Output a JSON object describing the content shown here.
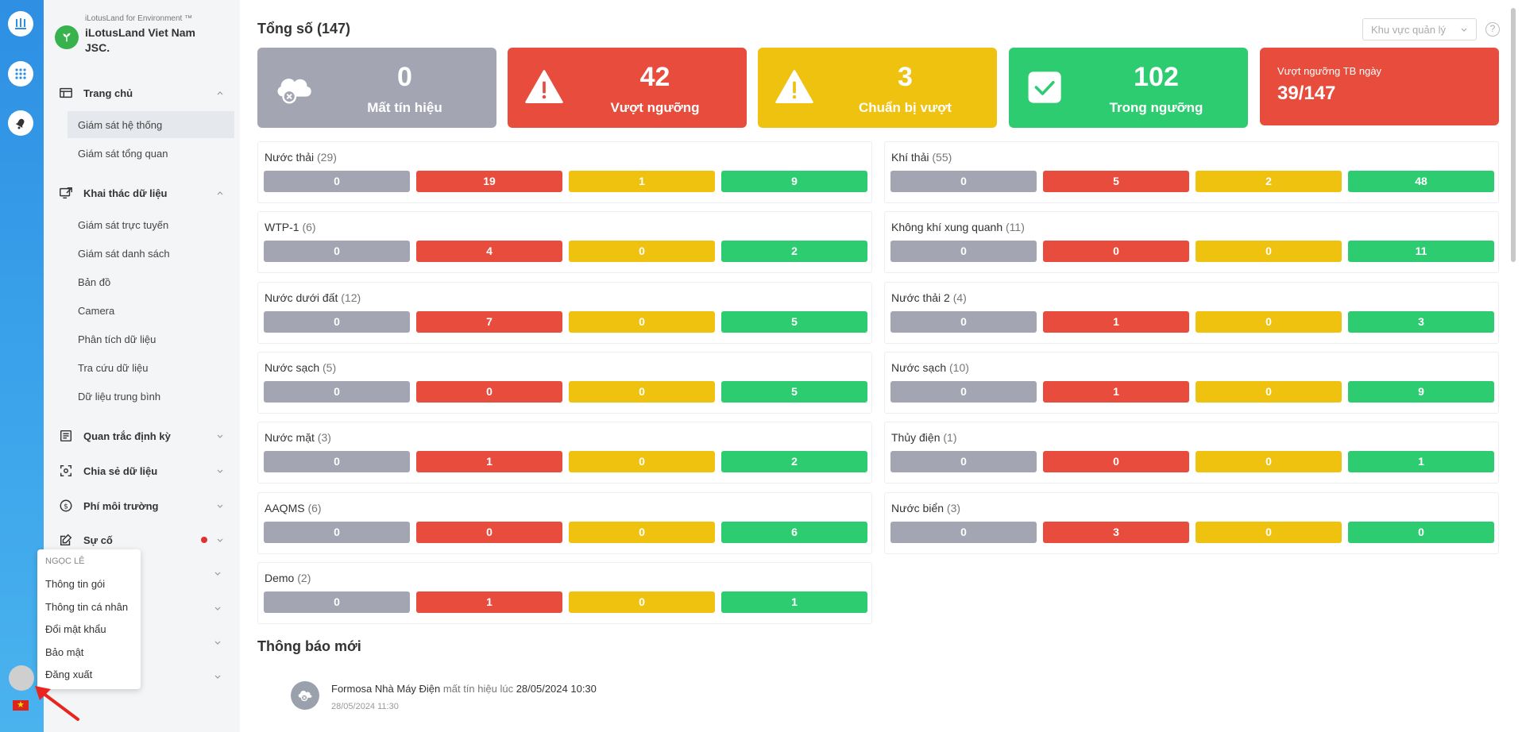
{
  "sidebar": {
    "brand_small": "iLotusLand for Environment ™",
    "brand_name": "iLotusLand Viet Nam JSC.",
    "groups": [
      {
        "label": "Trang chủ",
        "items": [
          "Giám sát hệ thống",
          "Giám sát tổng quan"
        ]
      },
      {
        "label": "Khai thác dữ liệu",
        "items": [
          "Giám sát trực tuyến",
          "Giám sát danh sách",
          "Bản đồ",
          "Camera",
          "Phân tích dữ liệu",
          "Tra cứu dữ liệu",
          "Dữ liệu trung bình"
        ]
      },
      {
        "label": "Quan trắc định kỳ"
      },
      {
        "label": "Chia sẻ dữ liệu"
      },
      {
        "label": "Phí môi trường"
      },
      {
        "label": "Sự cố"
      }
    ]
  },
  "user_menu": {
    "user_name": "NGỌC LÊ",
    "items": [
      "Thông tin gói",
      "Thông tin cá nhân",
      "Đổi mật khẩu",
      "Bảo mật",
      "Đăng xuất"
    ]
  },
  "header": {
    "title": "Tổng số (147)",
    "region_placeholder": "Khu vực quản lý",
    "help": "?"
  },
  "stats": [
    {
      "value": "0",
      "label": "Mất tín hiệu",
      "color": "#a3a5b3"
    },
    {
      "value": "42",
      "label": "Vượt ngưỡng",
      "color": "#e74c3c"
    },
    {
      "value": "3",
      "label": "Chuẩn bị vượt",
      "color": "#eec20f"
    },
    {
      "value": "102",
      "label": "Trong ngưỡng",
      "color": "#2ecc71"
    }
  ],
  "avg_card": {
    "label": "Vượt ngưỡng TB ngày",
    "value": "39/147",
    "color": "#e74c3c"
  },
  "colors": {
    "gray": "#a3a5b3",
    "red": "#e74c3c",
    "yellow": "#eec20f",
    "green": "#2ecc71"
  },
  "groups": [
    {
      "name": "Nước thải",
      "count": "(29)",
      "values": [
        "0",
        "19",
        "1",
        "9"
      ]
    },
    {
      "name": "Khí thải",
      "count": "(55)",
      "values": [
        "0",
        "5",
        "2",
        "48"
      ]
    },
    {
      "name": "WTP-1",
      "count": "(6)",
      "values": [
        "0",
        "4",
        "0",
        "2"
      ]
    },
    {
      "name": "Không khí xung quanh",
      "count": "(11)",
      "values": [
        "0",
        "0",
        "0",
        "11"
      ]
    },
    {
      "name": "Nước dưới đất",
      "count": "(12)",
      "values": [
        "0",
        "7",
        "0",
        "5"
      ]
    },
    {
      "name": "Nước thải 2",
      "count": "(4)",
      "values": [
        "0",
        "1",
        "0",
        "3"
      ]
    },
    {
      "name": "Nước sạch",
      "count": "(5)",
      "values": [
        "0",
        "0",
        "0",
        "5"
      ]
    },
    {
      "name": "Nước sạch",
      "count": "(10)",
      "values": [
        "0",
        "1",
        "0",
        "9"
      ]
    },
    {
      "name": "Nước mặt",
      "count": "(3)",
      "values": [
        "0",
        "1",
        "0",
        "2"
      ]
    },
    {
      "name": "Thủy điện",
      "count": "(1)",
      "values": [
        "0",
        "0",
        "0",
        "1"
      ]
    },
    {
      "name": "AAQMS",
      "count": "(6)",
      "values": [
        "0",
        "0",
        "0",
        "6"
      ]
    },
    {
      "name": "Nước biển",
      "count": "(3)",
      "values": [
        "0",
        "3",
        "0",
        "0"
      ]
    },
    {
      "name": "Demo",
      "count": "(2)",
      "values": [
        "0",
        "1",
        "0",
        "1"
      ]
    }
  ],
  "notifications": {
    "title": "Thông báo mới",
    "items": [
      {
        "station": "Formosa Nhà Máy Điện",
        "event": "mất tín hiệu lúc",
        "at": "28/05/2024 10:30",
        "time": "28/05/2024 11:30"
      }
    ]
  }
}
